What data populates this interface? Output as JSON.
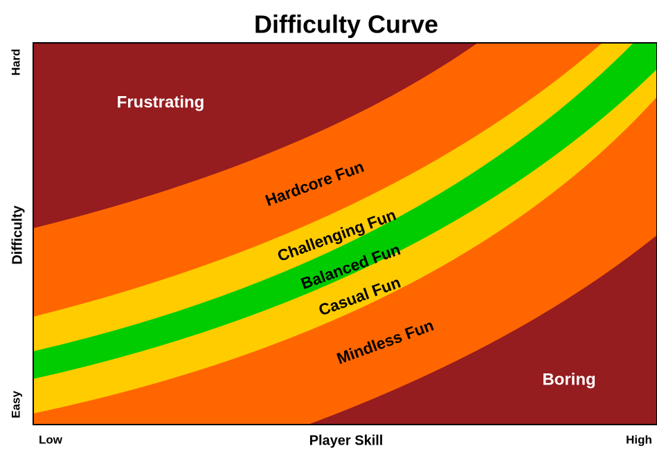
{
  "title": "Difficulty Curve",
  "x_axis": {
    "label": "Player Skill",
    "low": "Low",
    "high": "High"
  },
  "y_axis": {
    "label": "Difficulty",
    "low": "Easy",
    "high": "Hard"
  },
  "zones": [
    "Frustrating",
    "Hardcore Fun",
    "Challenging Fun",
    "Balanced Fun",
    "Casual Fun",
    "Mindless Fun",
    "Boring"
  ]
}
